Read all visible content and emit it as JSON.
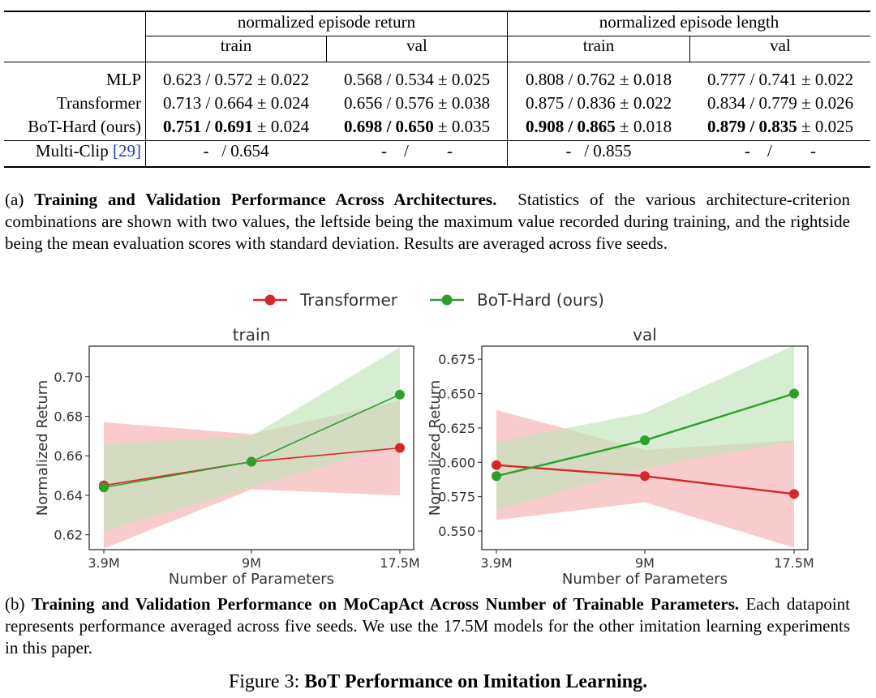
{
  "table": {
    "group_headers": [
      "normalized episode return",
      "normalized episode length"
    ],
    "sub_headers": [
      "train",
      "val",
      "train",
      "val"
    ],
    "rows": [
      {
        "label": "MLP",
        "bold": false,
        "cells": [
          {
            "best": "0.623",
            "mean": "0.572",
            "std": "0.022"
          },
          {
            "best": "0.568",
            "mean": "0.534",
            "std": "0.025"
          },
          {
            "best": "0.808",
            "mean": "0.762",
            "std": "0.018"
          },
          {
            "best": "0.777",
            "mean": "0.741",
            "std": "0.022"
          }
        ]
      },
      {
        "label": "Transformer",
        "bold": false,
        "cells": [
          {
            "best": "0.713",
            "mean": "0.664",
            "std": "0.024"
          },
          {
            "best": "0.656",
            "mean": "0.576",
            "std": "0.038"
          },
          {
            "best": "0.875",
            "mean": "0.836",
            "std": "0.022"
          },
          {
            "best": "0.834",
            "mean": "0.779",
            "std": "0.026"
          }
        ]
      },
      {
        "label": "BoT-Hard (ours)",
        "bold": true,
        "cells": [
          {
            "best": "0.751",
            "mean": "0.691",
            "std": "0.024"
          },
          {
            "best": "0.698",
            "mean": "0.650",
            "std": "0.035"
          },
          {
            "best": "0.908",
            "mean": "0.865",
            "std": "0.018"
          },
          {
            "best": "0.879",
            "mean": "0.835",
            "std": "0.025"
          }
        ]
      }
    ],
    "multiclip": {
      "label": "Multi-Clip",
      "citation": "[29]",
      "cells": [
        "-   / 0.654",
        "-    /         -",
        "-   / 0.855",
        "-    /         -"
      ]
    }
  },
  "caption_a": {
    "prefix": "(a)",
    "bold": "Training and Validation Performance Across Architectures.",
    "text": "Statistics of the various architecture-criterion combinations are shown with two values, the leftside being the maximum value recorded during training, and the rightside being the mean evaluation scores with standard deviation. Results are averaged across five seeds."
  },
  "caption_b": {
    "prefix": "(b)",
    "bold": "Training and Validation Performance on MoCapAct Across Number of Trainable Parameters.",
    "text": "Each datapoint represents performance averaged across five seeds. We use the 17.5M models for the other imitation learning experiments in this paper."
  },
  "figure_title": {
    "prefix": "Figure 3:",
    "bold": "BoT Performance on Imitation Learning."
  },
  "colors": {
    "transformer": "#d62728",
    "bot": "#2ca02c",
    "transformer_band": "#f4b0b2",
    "bot_band": "#c2e3b8"
  },
  "chart_data": [
    {
      "type": "line",
      "title": "train",
      "xlabel": "Number of Parameters",
      "ylabel": "Normalized Return",
      "x": [
        "3.9M",
        "9M",
        "17.5M"
      ],
      "yticks": [
        0.62,
        0.64,
        0.66,
        0.68,
        0.7
      ],
      "ylim": [
        0.6125,
        0.7155
      ],
      "legend": "top, outside",
      "series": [
        {
          "name": "Transformer",
          "values": [
            0.645,
            0.657,
            0.664
          ],
          "lower": [
            0.613,
            0.643,
            0.64
          ],
          "upper": [
            0.677,
            0.671,
            0.688
          ]
        },
        {
          "name": "BoT-Hard (ours)",
          "values": [
            0.644,
            0.657,
            0.691
          ],
          "lower": [
            0.622,
            0.644,
            0.666
          ],
          "upper": [
            0.666,
            0.67,
            0.715
          ]
        }
      ]
    },
    {
      "type": "line",
      "title": "val",
      "xlabel": "Number of Parameters",
      "ylabel": "Normalized Return",
      "x": [
        "3.9M",
        "9M",
        "17.5M"
      ],
      "yticks": [
        0.55,
        0.575,
        0.6,
        0.625,
        0.65,
        0.675
      ],
      "ylim": [
        0.5365,
        0.6845
      ],
      "series": [
        {
          "name": "Transformer",
          "values": [
            0.598,
            0.59,
            0.577
          ],
          "lower": [
            0.558,
            0.571,
            0.538
          ],
          "upper": [
            0.638,
            0.609,
            0.616
          ]
        },
        {
          "name": "BoT-Hard (ours)",
          "values": [
            0.59,
            0.616,
            0.65
          ],
          "lower": [
            0.565,
            0.596,
            0.615
          ],
          "upper": [
            0.615,
            0.636,
            0.685
          ]
        }
      ]
    }
  ]
}
